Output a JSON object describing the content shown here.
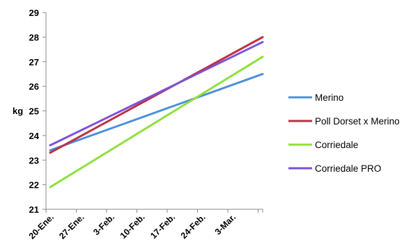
{
  "chart_data": {
    "type": "line",
    "title": "",
    "xlabel": "",
    "ylabel": "kg",
    "ylim": [
      21,
      29
    ],
    "yticks": [
      21,
      22,
      23,
      24,
      25,
      26,
      27,
      28,
      29
    ],
    "categories": [
      "20-Ene.",
      "27-Ene.",
      "3-Feb.",
      "10-Feb.",
      "17-Feb.",
      "24-Feb.",
      "3-Mar."
    ],
    "grid": false,
    "legend_position": "right",
    "series": [
      {
        "name": "Merino",
        "color": "#4A90D9",
        "start": 23.4,
        "end": 26.5
      },
      {
        "name": "Poll Dorset x Merino",
        "color": "#BE3043",
        "start": 23.3,
        "end": 28.0
      },
      {
        "name": "Corriedale",
        "color": "#8FE03C",
        "start": 21.9,
        "end": 27.2
      },
      {
        "name": "Corriedale PRO",
        "color": "#7A52D6",
        "start": 23.6,
        "end": 27.8
      }
    ]
  }
}
